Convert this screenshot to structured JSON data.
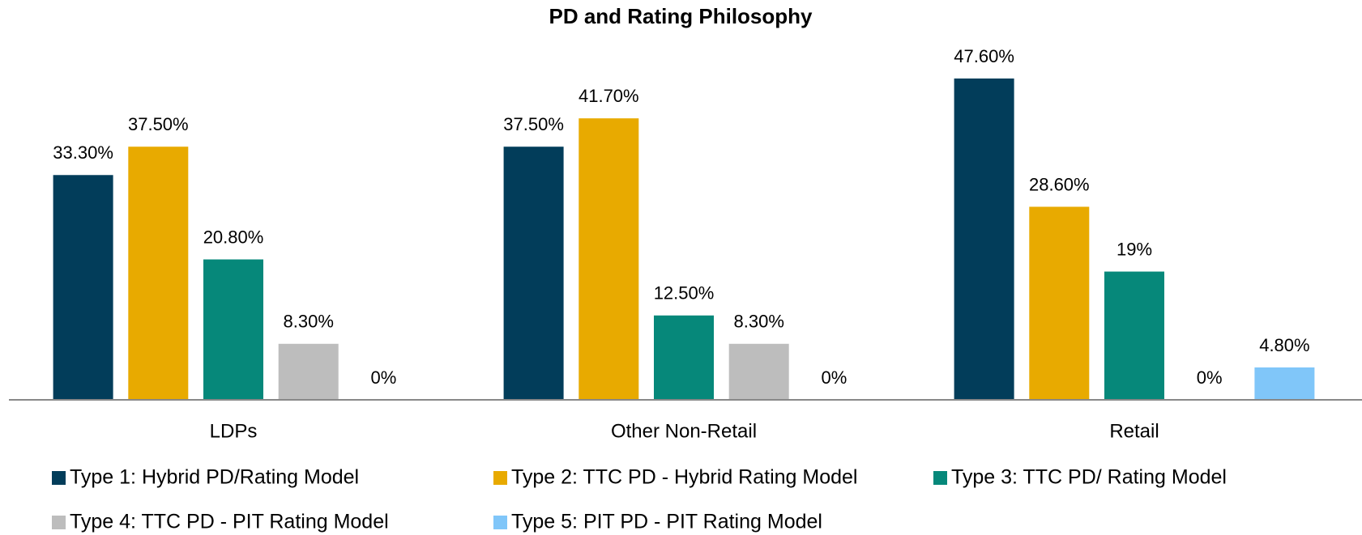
{
  "chart_data": {
    "type": "bar",
    "title": "PD and Rating Philosophy",
    "categories": [
      "LDPs",
      "Other Non-Retail",
      "Retail"
    ],
    "series": [
      {
        "name": "Type 1: Hybrid PD/Rating Model",
        "color": "#023d5a",
        "values": [
          33.3,
          37.5,
          47.6
        ],
        "value_labels": [
          "33.30%",
          "37.50%",
          "47.60%"
        ]
      },
      {
        "name": "Type 2: TTC PD - Hybrid Rating Model",
        "color": "#e8aa00",
        "values": [
          37.5,
          41.7,
          28.6
        ],
        "value_labels": [
          "37.50%",
          "41.70%",
          "28.60%"
        ]
      },
      {
        "name": "Type 3: TTC PD/ Rating Model",
        "color": "#06887a",
        "values": [
          20.8,
          12.5,
          19
        ],
        "value_labels": [
          "20.80%",
          "12.50%",
          "19%"
        ]
      },
      {
        "name": "Type 4: TTC PD - PIT Rating Model",
        "color": "#bdbdbd",
        "values": [
          8.3,
          8.3,
          0
        ],
        "value_labels": [
          "8.30%",
          "8.30%",
          "0%"
        ]
      },
      {
        "name": "Type 5: PIT PD - PIT Rating Model",
        "color": "#80c6f9",
        "values": [
          0,
          0,
          4.8
        ],
        "value_labels": [
          "0%",
          "0%",
          "4.80%"
        ]
      }
    ],
    "legend": "bottom"
  }
}
